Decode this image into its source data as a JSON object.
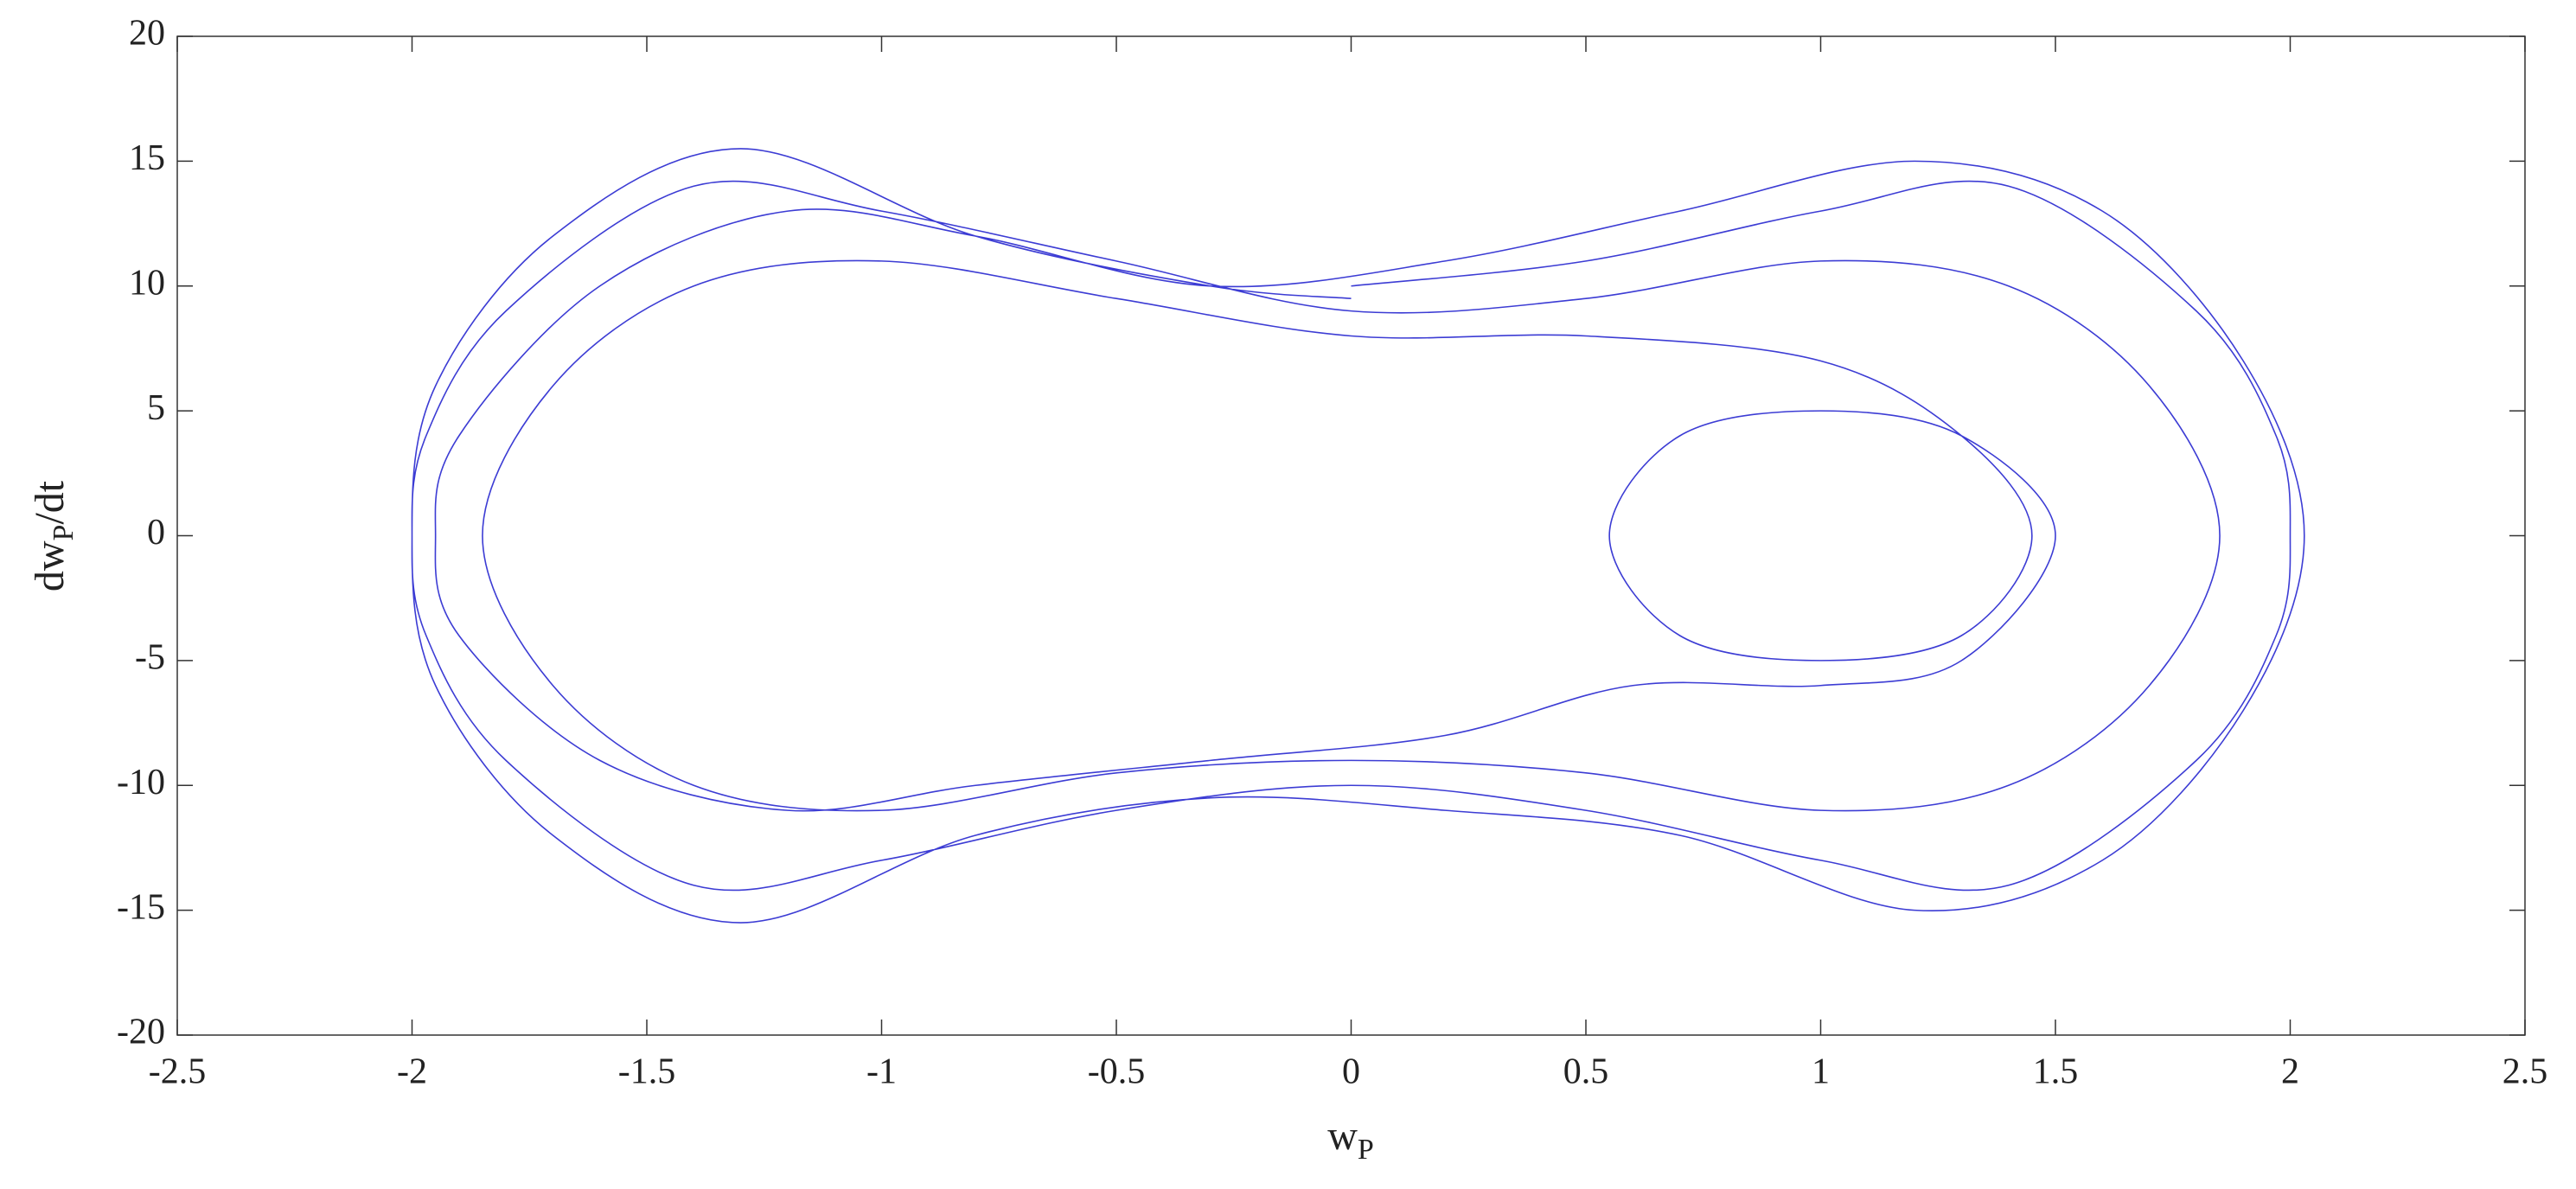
{
  "chart_data": {
    "type": "line",
    "xlabel": {
      "text": "w",
      "subscript": "P"
    },
    "ylabel": {
      "before": "dw",
      "subscript": "P",
      "after": "/dt"
    },
    "color": "#1a1acc",
    "xlim": [
      -2.5,
      2.5
    ],
    "xticks": [
      -2.5,
      -2,
      -1.5,
      -1,
      -0.5,
      0,
      0.5,
      1,
      1.5,
      2,
      2.5
    ],
    "ylim": [
      -20,
      20
    ],
    "yticks": [
      -20,
      -15,
      -10,
      -5,
      0,
      5,
      10,
      15,
      20
    ],
    "x": [
      0,
      0.5,
      1,
      1.4,
      1.8,
      1.97,
      2,
      1.97,
      1.8,
      1.4,
      1,
      0.5,
      0,
      -0.5,
      -1,
      -1.4,
      -1.8,
      -1.97,
      -2,
      -1.97,
      -1.8,
      -1.4,
      -1,
      -0.5,
      0,
      0.5,
      1,
      1.4,
      1.7,
      1.85,
      1.7,
      1.4,
      1,
      0.5,
      0,
      -0.5,
      -1,
      -1.4,
      -1.7,
      -1.85,
      -1.7,
      -1.4,
      -1,
      -0.5,
      0,
      0.5,
      1,
      1.3,
      1.45,
      1.3,
      1,
      0.7,
      0.55,
      0.7,
      1,
      1.3,
      1.5,
      1.3,
      1,
      0.6,
      0.2,
      -0.3,
      -0.8,
      -1.2,
      -1.6,
      -1.9,
      -1.95,
      -1.9,
      -1.6,
      -1.2,
      -0.8,
      -0.3,
      0.2,
      0.7,
      1.2,
      1.6,
      1.9,
      2.03,
      1.9,
      1.6,
      1.2,
      0.7,
      0.2,
      -0.3,
      -0.8,
      -1.3,
      -1.7,
      -1.95,
      -2,
      -1.95,
      -1.7,
      -1.3,
      -0.8,
      -0.3,
      0
    ],
    "values": [
      10,
      11,
      13,
      14,
      9,
      4,
      0,
      -4,
      -9,
      -14,
      -13,
      -11,
      -10,
      -11,
      -13,
      -14,
      -9,
      -4,
      0,
      4,
      9,
      14,
      13,
      11,
      9,
      9.5,
      11,
      10,
      6,
      0,
      -6,
      -10,
      -11,
      -9.5,
      -9,
      -9.5,
      -11,
      -10,
      -6,
      0,
      6,
      10,
      11,
      9.5,
      8,
      8,
      7,
      4,
      0,
      -4,
      -5,
      -4,
      0,
      4,
      5,
      4,
      0,
      -5,
      -6,
      -6,
      -8,
      -9,
      -10,
      -11,
      -9,
      -4,
      0,
      4,
      10,
      13,
      12,
      10,
      11,
      13,
      15,
      13,
      7,
      0,
      -7,
      -13,
      -15,
      -12,
      -11,
      -10.5,
      -12,
      -15.5,
      -12,
      -6,
      0,
      6,
      12,
      15.5,
      12,
      10,
      9.5
    ]
  }
}
